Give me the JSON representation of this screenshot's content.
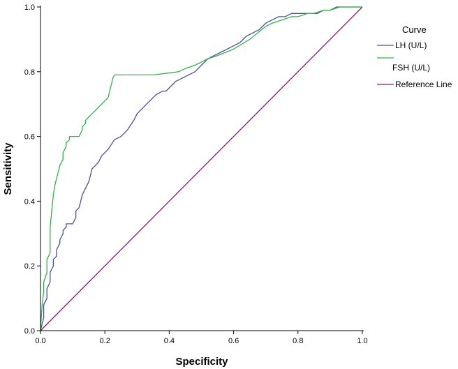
{
  "chart_data": {
    "type": "line",
    "title": "",
    "xlabel": "Specificity",
    "ylabel": "Sensitivity",
    "xlim": [
      0,
      1
    ],
    "ylim": [
      0,
      1
    ],
    "x_ticks": [
      "0.0",
      "0.2",
      "0.4",
      "0.6",
      "0.8",
      "1.0"
    ],
    "y_ticks": [
      "0.0",
      "0.2",
      "0.4",
      "0.6",
      "0.8",
      "1.0"
    ],
    "grid": false,
    "legend": {
      "title": "Curve",
      "position": "top-right"
    },
    "series": [
      {
        "name": "LH (U/L)",
        "color": "#4a4f9a",
        "x": [
          0,
          0.005,
          0.01,
          0.01,
          0.02,
          0.02,
          0.03,
          0.03,
          0.04,
          0.04,
          0.05,
          0.05,
          0.06,
          0.06,
          0.07,
          0.07,
          0.08,
          0.08,
          0.1,
          0.11,
          0.11,
          0.12,
          0.125,
          0.13,
          0.14,
          0.15,
          0.155,
          0.16,
          0.17,
          0.18,
          0.19,
          0.21,
          0.23,
          0.25,
          0.27,
          0.29,
          0.3,
          0.32,
          0.34,
          0.36,
          0.38,
          0.39,
          0.4,
          0.42,
          0.44,
          0.46,
          0.48,
          0.5,
          0.52,
          0.54,
          0.56,
          0.58,
          0.6,
          0.62,
          0.64,
          0.66,
          0.68,
          0.7,
          0.72,
          0.74,
          0.76,
          0.78,
          0.8,
          0.82,
          0.84,
          0.86,
          0.88,
          0.9,
          0.92,
          0.93,
          0.95,
          0.97,
          1.0
        ],
        "y": [
          0,
          0.02,
          0.04,
          0.08,
          0.1,
          0.13,
          0.15,
          0.18,
          0.2,
          0.22,
          0.23,
          0.25,
          0.27,
          0.28,
          0.3,
          0.31,
          0.32,
          0.33,
          0.33,
          0.35,
          0.37,
          0.38,
          0.4,
          0.42,
          0.44,
          0.46,
          0.48,
          0.5,
          0.51,
          0.52,
          0.54,
          0.56,
          0.59,
          0.6,
          0.62,
          0.65,
          0.67,
          0.69,
          0.71,
          0.73,
          0.74,
          0.74,
          0.75,
          0.77,
          0.78,
          0.79,
          0.8,
          0.82,
          0.84,
          0.85,
          0.86,
          0.87,
          0.88,
          0.89,
          0.91,
          0.92,
          0.93,
          0.95,
          0.96,
          0.97,
          0.97,
          0.98,
          0.98,
          0.98,
          0.98,
          0.98,
          0.99,
          0.99,
          1.0,
          1.0,
          1.0,
          1.0,
          1.0
        ]
      },
      {
        "name": "FSH (U/L)",
        "color": "#2db34a",
        "x": [
          0,
          0.005,
          0.01,
          0.01,
          0.02,
          0.02,
          0.03,
          0.03,
          0.04,
          0.045,
          0.05,
          0.055,
          0.06,
          0.07,
          0.07,
          0.08,
          0.08,
          0.09,
          0.09,
          0.1,
          0.12,
          0.13,
          0.13,
          0.14,
          0.14,
          0.15,
          0.16,
          0.17,
          0.18,
          0.19,
          0.2,
          0.21,
          0.215,
          0.22,
          0.225,
          0.23,
          0.35,
          0.43,
          0.45,
          0.48,
          0.5,
          0.52,
          0.55,
          0.6,
          0.65,
          0.7,
          0.72,
          0.75,
          0.78,
          0.8,
          0.83,
          0.85,
          0.88,
          0.9,
          0.93,
          0.96,
          1.0
        ],
        "y": [
          0,
          0.08,
          0.12,
          0.15,
          0.18,
          0.22,
          0.24,
          0.32,
          0.42,
          0.45,
          0.47,
          0.49,
          0.51,
          0.53,
          0.55,
          0.57,
          0.58,
          0.59,
          0.6,
          0.6,
          0.6,
          0.62,
          0.63,
          0.64,
          0.65,
          0.66,
          0.67,
          0.68,
          0.69,
          0.7,
          0.71,
          0.72,
          0.74,
          0.76,
          0.78,
          0.79,
          0.79,
          0.8,
          0.81,
          0.82,
          0.83,
          0.84,
          0.85,
          0.87,
          0.9,
          0.94,
          0.95,
          0.96,
          0.97,
          0.97,
          0.98,
          0.98,
          0.99,
          0.99,
          1.0,
          1.0,
          1.0
        ]
      },
      {
        "name": "Reference Line",
        "color": "#8a1a6b",
        "x": [
          0,
          1
        ],
        "y": [
          0,
          1
        ]
      }
    ]
  }
}
